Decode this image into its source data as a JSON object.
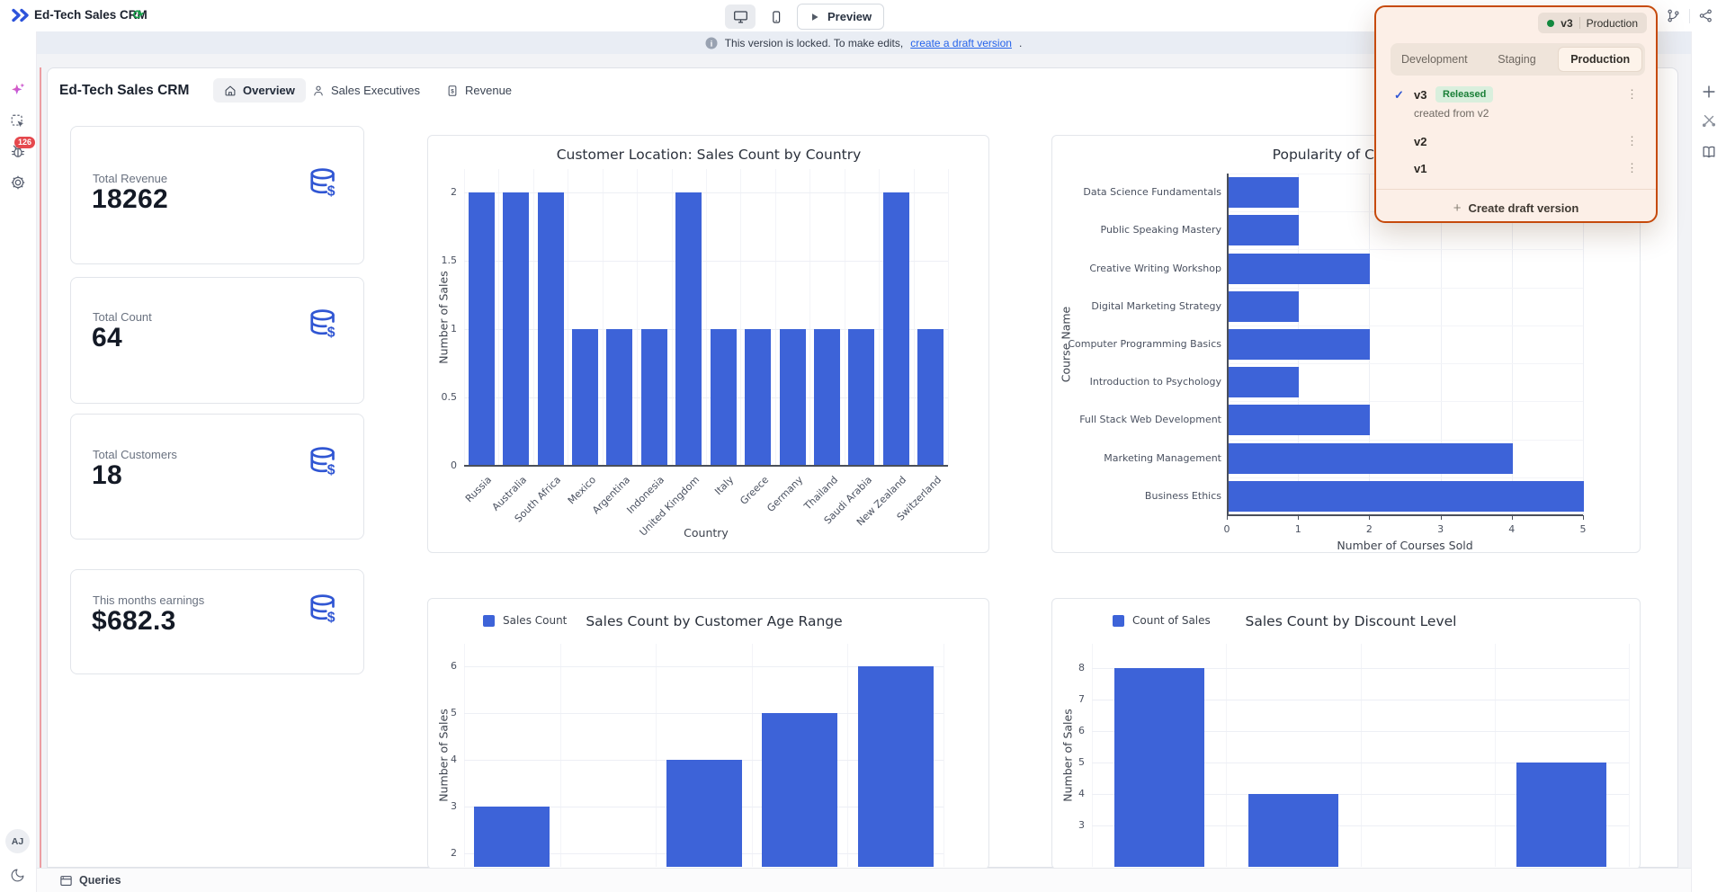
{
  "topbar": {
    "app_title": "Ed-Tech Sales CRM",
    "preview_label": "Preview"
  },
  "banner": {
    "prefix": "This version is locked. To make edits, ",
    "link_text": "create a draft version",
    "suffix": "."
  },
  "page_header": {
    "title": "Ed-Tech Sales CRM",
    "tabs": [
      {
        "label": "Overview",
        "active": true
      },
      {
        "label": "Sales Executives",
        "active": false
      },
      {
        "label": "Revenue",
        "active": false
      }
    ]
  },
  "stats": [
    {
      "label": "Total Revenue",
      "value": "18262"
    },
    {
      "label": "Total Count",
      "value": "64"
    },
    {
      "label": "Total Customers",
      "value": "18"
    },
    {
      "label": "This months earnings",
      "value": "$682.3"
    }
  ],
  "version_panel": {
    "current_version": "v3",
    "current_env": "Production",
    "env_tabs": [
      "Development",
      "Staging",
      "Production"
    ],
    "active_env": "Production",
    "versions": [
      {
        "name": "v3",
        "badge": "Released",
        "subtitle": "created from v2",
        "selected": true
      },
      {
        "name": "v2"
      },
      {
        "name": "v1"
      }
    ],
    "create_label": "Create draft version"
  },
  "left_rail": {
    "debug_badge": "126",
    "avatar": "AJ"
  },
  "bottom_bar": {
    "label": "Queries"
  },
  "glyphs": {
    "plus": "+",
    "check": "✓",
    "kebab": "⋮",
    "sync": "⟳"
  },
  "colors": {
    "accent_blue": "#3056d3",
    "bar_blue": "#3d63d8",
    "panel_border": "#c64a0c",
    "panel_bg": "#fcefe7",
    "released_bg": "#d9efdd",
    "released_text": "#1a7f37",
    "link_blue": "#2563eb",
    "badge_red": "#e5484d"
  },
  "chart_data": [
    {
      "id": "sales-count-by-country",
      "type": "bar",
      "title": "Customer Location: Sales Count by Country",
      "xlabel": "Country",
      "ylabel": "Number of Sales",
      "categories": [
        "Russia",
        "Australia",
        "South Africa",
        "Mexico",
        "Argentina",
        "Indonesia",
        "United Kingdom",
        "Italy",
        "Greece",
        "Germany",
        "Thailand",
        "Saudi Arabia",
        "New Zealand",
        "Switzerland"
      ],
      "values": [
        2,
        2,
        2,
        1,
        1,
        1,
        2,
        1,
        1,
        1,
        1,
        1,
        2,
        1
      ],
      "yticks": [
        0,
        0.5,
        1,
        1.5,
        2
      ],
      "ylim": [
        0,
        2.17
      ],
      "grid": true,
      "bar_color": "#3d63d8"
    },
    {
      "id": "popularity-of-courses",
      "type": "bar-horizontal",
      "title": "Popularity of Courses",
      "xlabel": "Number of Courses Sold",
      "ylabel": "Course Name",
      "categories": [
        "Data Science Fundamentals",
        "Public Speaking Mastery",
        "Creative Writing Workshop",
        "Digital Marketing Strategy",
        "Computer Programming Basics",
        "Introduction to Psychology",
        "Full Stack Web Development",
        "Marketing Management",
        "Business Ethics"
      ],
      "values": [
        1,
        1,
        2,
        1,
        2,
        1,
        2,
        4,
        5
      ],
      "xticks": [
        0,
        1,
        2,
        3,
        4,
        5
      ],
      "xlim": [
        0,
        5
      ],
      "grid": true,
      "bar_color": "#3d63d8"
    },
    {
      "id": "sales-count-by-customer-age-range",
      "type": "bar",
      "title": "Sales Count by Customer Age Range",
      "legend": "Sales Count",
      "legend_position": "top-left",
      "ylabel": "Number of Sales",
      "categories": [
        "",
        "",
        "",
        "",
        ""
      ],
      "values": [
        3,
        null,
        4,
        5,
        6
      ],
      "yticks": [
        2,
        3,
        4,
        5,
        6
      ],
      "ylim_visible": [
        1.71,
        6.48
      ],
      "clipped": true,
      "note": "Bottom of chart (x-axis labels and one short bar) is cut off by the viewport; slot 2 value not visible.",
      "grid": true,
      "bar_color": "#3d63d8"
    },
    {
      "id": "sales-count-by-discount-level",
      "type": "bar",
      "title": "Sales Count by Discount Level",
      "legend": "Count of Sales",
      "legend_position": "top-left",
      "ylabel": "Number of Sales",
      "categories": [
        "",
        "",
        "",
        ""
      ],
      "values": [
        8,
        4,
        null,
        5
      ],
      "yticks": [
        3,
        4,
        5,
        6,
        7,
        8
      ],
      "ylim_visible": [
        1.69,
        8.77
      ],
      "clipped": true,
      "note": "Bottom of chart (x-axis labels and one short bar) is cut off by the viewport; slot 3 value not visible.",
      "grid": true,
      "bar_color": "#3d63d8"
    }
  ]
}
